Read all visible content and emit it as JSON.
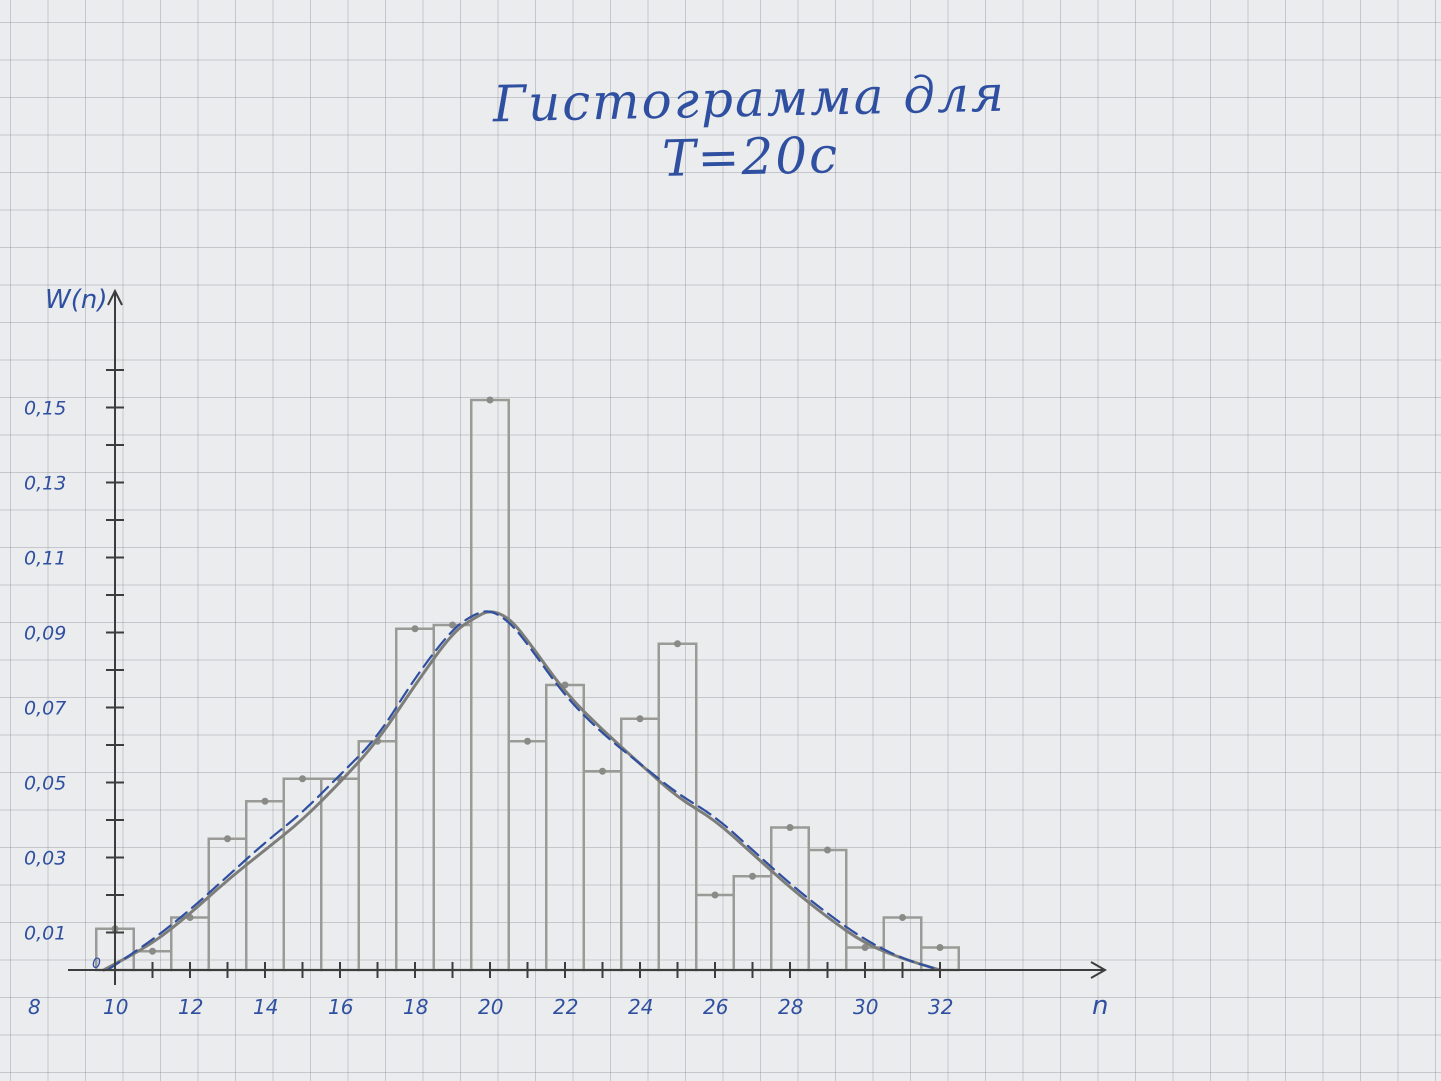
{
  "title": "Гистограмма для T=20с",
  "chart_data": {
    "type": "bar",
    "title": "Гистограмма для T=20с",
    "xlabel": "n",
    "ylabel": "W(n)",
    "xlim": [
      8,
      34
    ],
    "ylim": [
      0,
      0.17
    ],
    "x_ticks": [
      "8",
      "10",
      "12",
      "14",
      "16",
      "18",
      "20",
      "22",
      "24",
      "26",
      "28",
      "30",
      "32"
    ],
    "y_ticks": [
      "0,01",
      "0,03",
      "0,05",
      "0,07",
      "0,09",
      "0,11",
      "0,13",
      "0,15"
    ],
    "origin_label": "0",
    "grid": true,
    "histogram": {
      "name": "histogram",
      "color": "#9a9a96",
      "bins": [
        {
          "n": 10,
          "value": 0.011
        },
        {
          "n": 11,
          "value": 0.005
        },
        {
          "n": 12,
          "value": 0.014
        },
        {
          "n": 13,
          "value": 0.035
        },
        {
          "n": 14,
          "value": 0.045
        },
        {
          "n": 15,
          "value": 0.051
        },
        {
          "n": 16,
          "value": 0.051
        },
        {
          "n": 17,
          "value": 0.061
        },
        {
          "n": 18,
          "value": 0.091
        },
        {
          "n": 19,
          "value": 0.092
        },
        {
          "n": 20,
          "value": 0.152
        },
        {
          "n": 21,
          "value": 0.061
        },
        {
          "n": 22,
          "value": 0.076
        },
        {
          "n": 23,
          "value": 0.053
        },
        {
          "n": 24,
          "value": 0.067
        },
        {
          "n": 25,
          "value": 0.087
        },
        {
          "n": 26,
          "value": 0.02
        },
        {
          "n": 27,
          "value": 0.025
        },
        {
          "n": 28,
          "value": 0.038
        },
        {
          "n": 29,
          "value": 0.032
        },
        {
          "n": 30,
          "value": 0.006
        },
        {
          "n": 31,
          "value": 0.014
        },
        {
          "n": 32,
          "value": 0.006
        }
      ]
    },
    "curves": [
      {
        "name": "pencil-curve",
        "color": "#7d7d7a",
        "points": [
          [
            9.7,
            0
          ],
          [
            11,
            0.007
          ],
          [
            12,
            0.015
          ],
          [
            13,
            0.024
          ],
          [
            14,
            0.032
          ],
          [
            15,
            0.04
          ],
          [
            16,
            0.05
          ],
          [
            17,
            0.061
          ],
          [
            18,
            0.076
          ],
          [
            19,
            0.09
          ],
          [
            19.6,
            0.094
          ],
          [
            20,
            0.096
          ],
          [
            20.5,
            0.094
          ],
          [
            21,
            0.088
          ],
          [
            22,
            0.074
          ],
          [
            23,
            0.064
          ],
          [
            24,
            0.055
          ],
          [
            25,
            0.046
          ],
          [
            26,
            0.04
          ],
          [
            27,
            0.031
          ],
          [
            28,
            0.022
          ],
          [
            29,
            0.014
          ],
          [
            30,
            0.007
          ],
          [
            31,
            0.003
          ],
          [
            32,
            0
          ]
        ]
      },
      {
        "name": "pen-dashed-curve",
        "color": "#2f4fa0",
        "dashed": true,
        "points": [
          [
            9.8,
            0
          ],
          [
            11,
            0.008
          ],
          [
            12,
            0.016
          ],
          [
            13,
            0.025
          ],
          [
            14,
            0.034
          ],
          [
            15,
            0.042
          ],
          [
            16,
            0.052
          ],
          [
            17,
            0.062
          ],
          [
            18,
            0.078
          ],
          [
            19,
            0.091
          ],
          [
            19.6,
            0.095
          ],
          [
            20,
            0.096
          ],
          [
            20.5,
            0.093
          ],
          [
            21,
            0.087
          ],
          [
            22,
            0.073
          ],
          [
            23,
            0.063
          ],
          [
            24,
            0.055
          ],
          [
            25,
            0.047
          ],
          [
            26,
            0.041
          ],
          [
            27,
            0.032
          ],
          [
            28,
            0.023
          ],
          [
            29,
            0.015
          ],
          [
            30,
            0.008
          ],
          [
            31,
            0.003
          ],
          [
            32,
            0
          ]
        ]
      }
    ]
  }
}
